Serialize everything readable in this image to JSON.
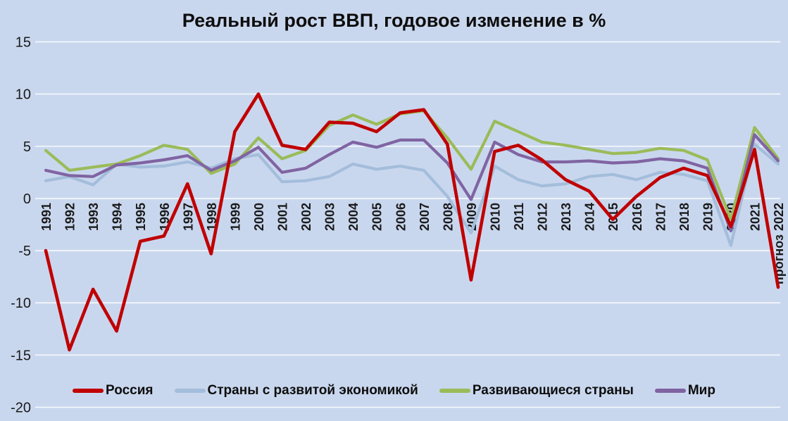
{
  "chart": {
    "title": "Реальный рост ВВП, годовое изменение в %"
  },
  "chart_data": {
    "type": "line",
    "title": "Реальный рост ВВП, годовое изменение в %",
    "xlabel": "",
    "ylabel": "",
    "ylim": [
      -20,
      15
    ],
    "yticks": [
      15,
      10,
      5,
      0,
      -5,
      -10,
      -15,
      -20
    ],
    "grid": true,
    "gridline_color": "#FFFFFF",
    "background_color": "#C9D7EE",
    "legend_position": "bottom",
    "x_label_rotation_deg": 90,
    "categories": [
      "1991",
      "1992",
      "1993",
      "1994",
      "1995",
      "1996",
      "1997",
      "1998",
      "1999",
      "2000",
      "2001",
      "2002",
      "2003",
      "2004",
      "2005",
      "2006",
      "2007",
      "2008",
      "2009",
      "2010",
      "2011",
      "2012",
      "2013",
      "2014",
      "2015",
      "2016",
      "2017",
      "2018",
      "2019",
      "2020",
      "2021",
      "прогноз 2022"
    ],
    "series": [
      {
        "key": "russia",
        "name": "Россия",
        "color": "#C00000",
        "values": [
          -5.0,
          -14.5,
          -8.7,
          -12.7,
          -4.1,
          -3.6,
          1.4,
          -5.3,
          6.4,
          10.0,
          5.1,
          4.7,
          7.3,
          7.2,
          6.4,
          8.2,
          8.5,
          5.2,
          -7.8,
          4.5,
          5.1,
          3.7,
          1.8,
          0.7,
          -2.0,
          0.2,
          2.0,
          2.9,
          2.2,
          -2.7,
          4.7,
          -8.5
        ]
      },
      {
        "key": "advanced-economies",
        "name": "Страны с развитой экономикой",
        "color": "#A3BDDB",
        "values": [
          1.7,
          2.1,
          1.3,
          3.3,
          3.0,
          3.1,
          3.5,
          2.9,
          3.8,
          4.2,
          1.6,
          1.7,
          2.1,
          3.3,
          2.8,
          3.1,
          2.7,
          0.2,
          -3.3,
          3.1,
          1.8,
          1.2,
          1.4,
          2.1,
          2.3,
          1.8,
          2.5,
          2.3,
          1.7,
          -4.5,
          5.2,
          3.3
        ]
      },
      {
        "key": "developing-countries",
        "name": "Развивающиеся страны",
        "color": "#9BBB59",
        "values": [
          4.6,
          2.7,
          3.0,
          3.3,
          4.1,
          5.1,
          4.7,
          2.4,
          3.3,
          5.8,
          3.8,
          4.6,
          7.0,
          8.0,
          7.1,
          8.1,
          8.4,
          5.8,
          2.8,
          7.4,
          6.4,
          5.4,
          5.1,
          4.7,
          4.3,
          4.4,
          4.8,
          4.6,
          3.7,
          -2.0,
          6.8,
          3.8
        ]
      },
      {
        "key": "world",
        "name": "Мир",
        "color": "#8064A2",
        "values": [
          2.7,
          2.2,
          2.1,
          3.2,
          3.4,
          3.7,
          4.1,
          2.7,
          3.6,
          4.9,
          2.5,
          2.9,
          4.2,
          5.4,
          4.9,
          5.6,
          5.6,
          3.4,
          -0.1,
          5.4,
          4.2,
          3.5,
          3.5,
          3.6,
          3.4,
          3.5,
          3.8,
          3.6,
          2.9,
          -3.1,
          6.1,
          3.6
        ]
      }
    ]
  }
}
